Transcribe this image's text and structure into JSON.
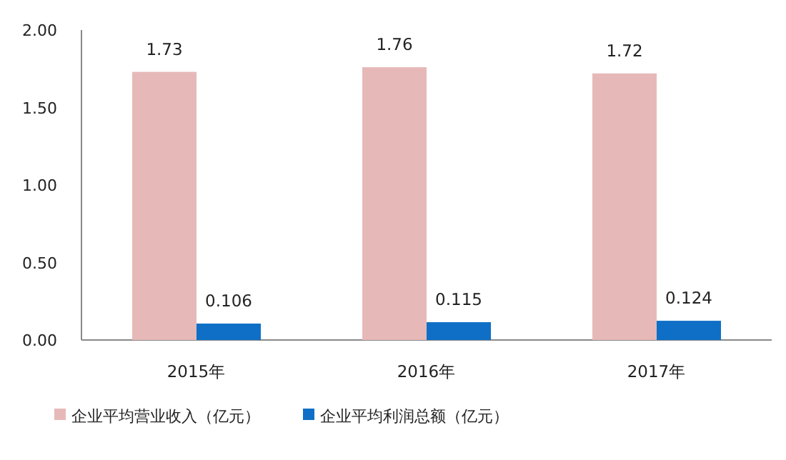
{
  "chart_data": {
    "type": "bar",
    "categories": [
      "2015年",
      "2016年",
      "2017年"
    ],
    "series": [
      {
        "name": "企业平均营业收入（亿元）",
        "color": "#e6b9b8",
        "values": [
          1.73,
          1.76,
          1.72
        ]
      },
      {
        "name": "企业平均利润总额（亿元）",
        "color": "#0f6fc6",
        "values": [
          0.106,
          0.115,
          0.124
        ]
      }
    ],
    "ylim": [
      0,
      2
    ],
    "yticks": [
      {
        "value": 0,
        "label": "0.00"
      },
      {
        "value": 0.5,
        "label": "0.50"
      },
      {
        "value": 1,
        "label": "1.00"
      },
      {
        "value": 1.5,
        "label": "1.50"
      },
      {
        "value": 2,
        "label": "2.00"
      }
    ],
    "data_labels": true,
    "legend": "bottom",
    "grid": false
  }
}
